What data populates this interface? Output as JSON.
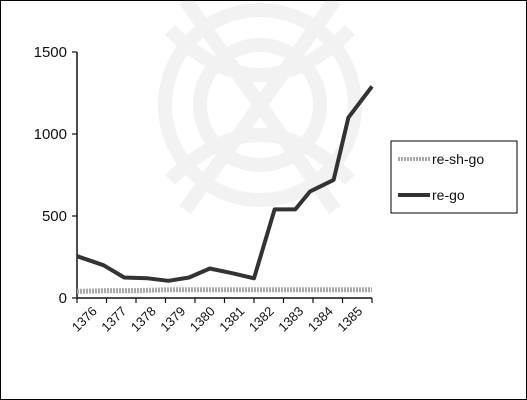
{
  "chart_data": {
    "type": "line",
    "categories": [
      "1376",
      "1377",
      "1378",
      "1379",
      "1380",
      "1381",
      "1382",
      "1383",
      "1384",
      "1385"
    ],
    "x_tick_labels": [
      "1376",
      "1377",
      "1378",
      "1379",
      "1380",
      "1381",
      "1382",
      "1383",
      "1384",
      "1385"
    ],
    "y_tick_labels": [
      "0",
      "500",
      "1000",
      "1500"
    ],
    "ylim": [
      0,
      1500
    ],
    "series": [
      {
        "name": "re-sh-go",
        "color": "#a8a8a8",
        "x": [
          0,
          1,
          2,
          3,
          4,
          5,
          6,
          7,
          8,
          9,
          10
        ],
        "values": [
          40,
          45,
          45,
          50,
          50,
          50,
          50,
          50,
          50,
          50,
          50
        ]
      },
      {
        "name": "re-go",
        "color": "#333333",
        "x": [
          0,
          0.9,
          1.6,
          2.4,
          3.1,
          3.8,
          4.5,
          5.3,
          6,
          6.7,
          7.4,
          7.9,
          8.7,
          9.2,
          10
        ],
        "values": [
          255,
          200,
          125,
          120,
          105,
          125,
          180,
          150,
          120,
          540,
          540,
          650,
          720,
          1100,
          1290
        ]
      }
    ],
    "legend": {
      "position": "right",
      "entries": [
        "re-sh-go",
        "re-go"
      ]
    },
    "grid": false
  }
}
